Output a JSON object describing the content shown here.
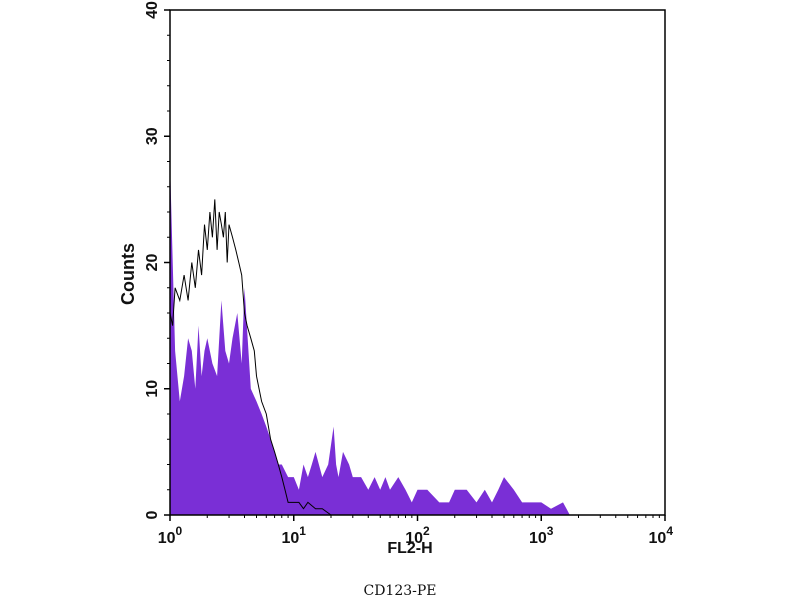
{
  "chart_data": {
    "type": "area",
    "ylabel": "Counts",
    "xlabel": "FL2-H",
    "caption": "CD123-PE",
    "x_scale": "log",
    "xlim": [
      1,
      10000
    ],
    "ylim": [
      0,
      40
    ],
    "y_ticks": [
      "0",
      "10",
      "20",
      "30",
      "40"
    ],
    "x_ticks": [
      {
        "base": "10",
        "exp": "0",
        "value": 1
      },
      {
        "base": "10",
        "exp": "1",
        "value": 10
      },
      {
        "base": "10",
        "exp": "2",
        "value": 100
      },
      {
        "base": "10",
        "exp": "3",
        "value": 1000
      },
      {
        "base": "10",
        "exp": "4",
        "value": 10000
      }
    ],
    "grid": false,
    "colors": {
      "filled": "#7a2fd6",
      "outline": "#000000",
      "axes": "#000000"
    },
    "series": [
      {
        "style": "filled",
        "x": [
          1,
          1.1,
          1.2,
          1.3,
          1.4,
          1.5,
          1.6,
          1.7,
          1.8,
          1.9,
          2.0,
          2.2,
          2.4,
          2.6,
          2.8,
          3.0,
          3.2,
          3.5,
          3.8,
          4.0,
          4.5,
          5.0,
          5.5,
          6.0,
          6.5,
          7.0,
          7.5,
          8.0,
          9.0,
          10,
          11,
          12,
          13,
          14,
          15,
          17,
          19,
          21,
          22,
          23,
          25,
          28,
          30,
          35,
          40,
          45,
          50,
          55,
          60,
          70,
          80,
          90,
          100,
          120,
          150,
          180,
          200,
          250,
          300,
          350,
          400,
          450,
          500,
          600,
          700,
          800,
          900,
          1000,
          1200,
          1500,
          1600,
          1700,
          10000
        ],
        "y": [
          28,
          13,
          9,
          11,
          14,
          13,
          10,
          15,
          11,
          13,
          14,
          12,
          11,
          17,
          13,
          12,
          14,
          16,
          12,
          18,
          10,
          9,
          8,
          7,
          6,
          5,
          4,
          4,
          3,
          3,
          2,
          4,
          3,
          4,
          5,
          3,
          4,
          7,
          4,
          3,
          5,
          4,
          3,
          3,
          2,
          3,
          2,
          3,
          2,
          3,
          2,
          1,
          2,
          2,
          1,
          1,
          2,
          2,
          1,
          2,
          1,
          2,
          3,
          2,
          1,
          1,
          1,
          1,
          0.5,
          1,
          0.5,
          0,
          0
        ]
      },
      {
        "style": "outline",
        "x": [
          1,
          1.05,
          1.1,
          1.2,
          1.3,
          1.4,
          1.5,
          1.6,
          1.7,
          1.8,
          1.9,
          2.0,
          2.1,
          2.2,
          2.3,
          2.4,
          2.5,
          2.6,
          2.7,
          2.8,
          2.9,
          3.0,
          3.2,
          3.4,
          3.6,
          3.8,
          4.0,
          4.2,
          4.5,
          4.8,
          5.0,
          5.5,
          6.0,
          6.5,
          7.0,
          7.5,
          8.0,
          8.5,
          9.0,
          10,
          11,
          12,
          13,
          15,
          17,
          20,
          25,
          30
        ],
        "y": [
          16,
          15,
          18,
          17,
          19,
          17,
          20,
          18,
          21,
          19,
          23,
          21,
          24,
          22,
          25,
          21,
          24,
          23,
          22,
          24,
          20,
          23,
          22,
          21,
          20,
          19,
          16,
          15,
          14,
          13,
          11,
          9,
          8,
          6,
          5,
          4,
          3,
          2,
          1,
          1,
          1,
          0.5,
          1,
          0.5,
          0.5,
          0,
          0,
          0
        ]
      }
    ]
  }
}
